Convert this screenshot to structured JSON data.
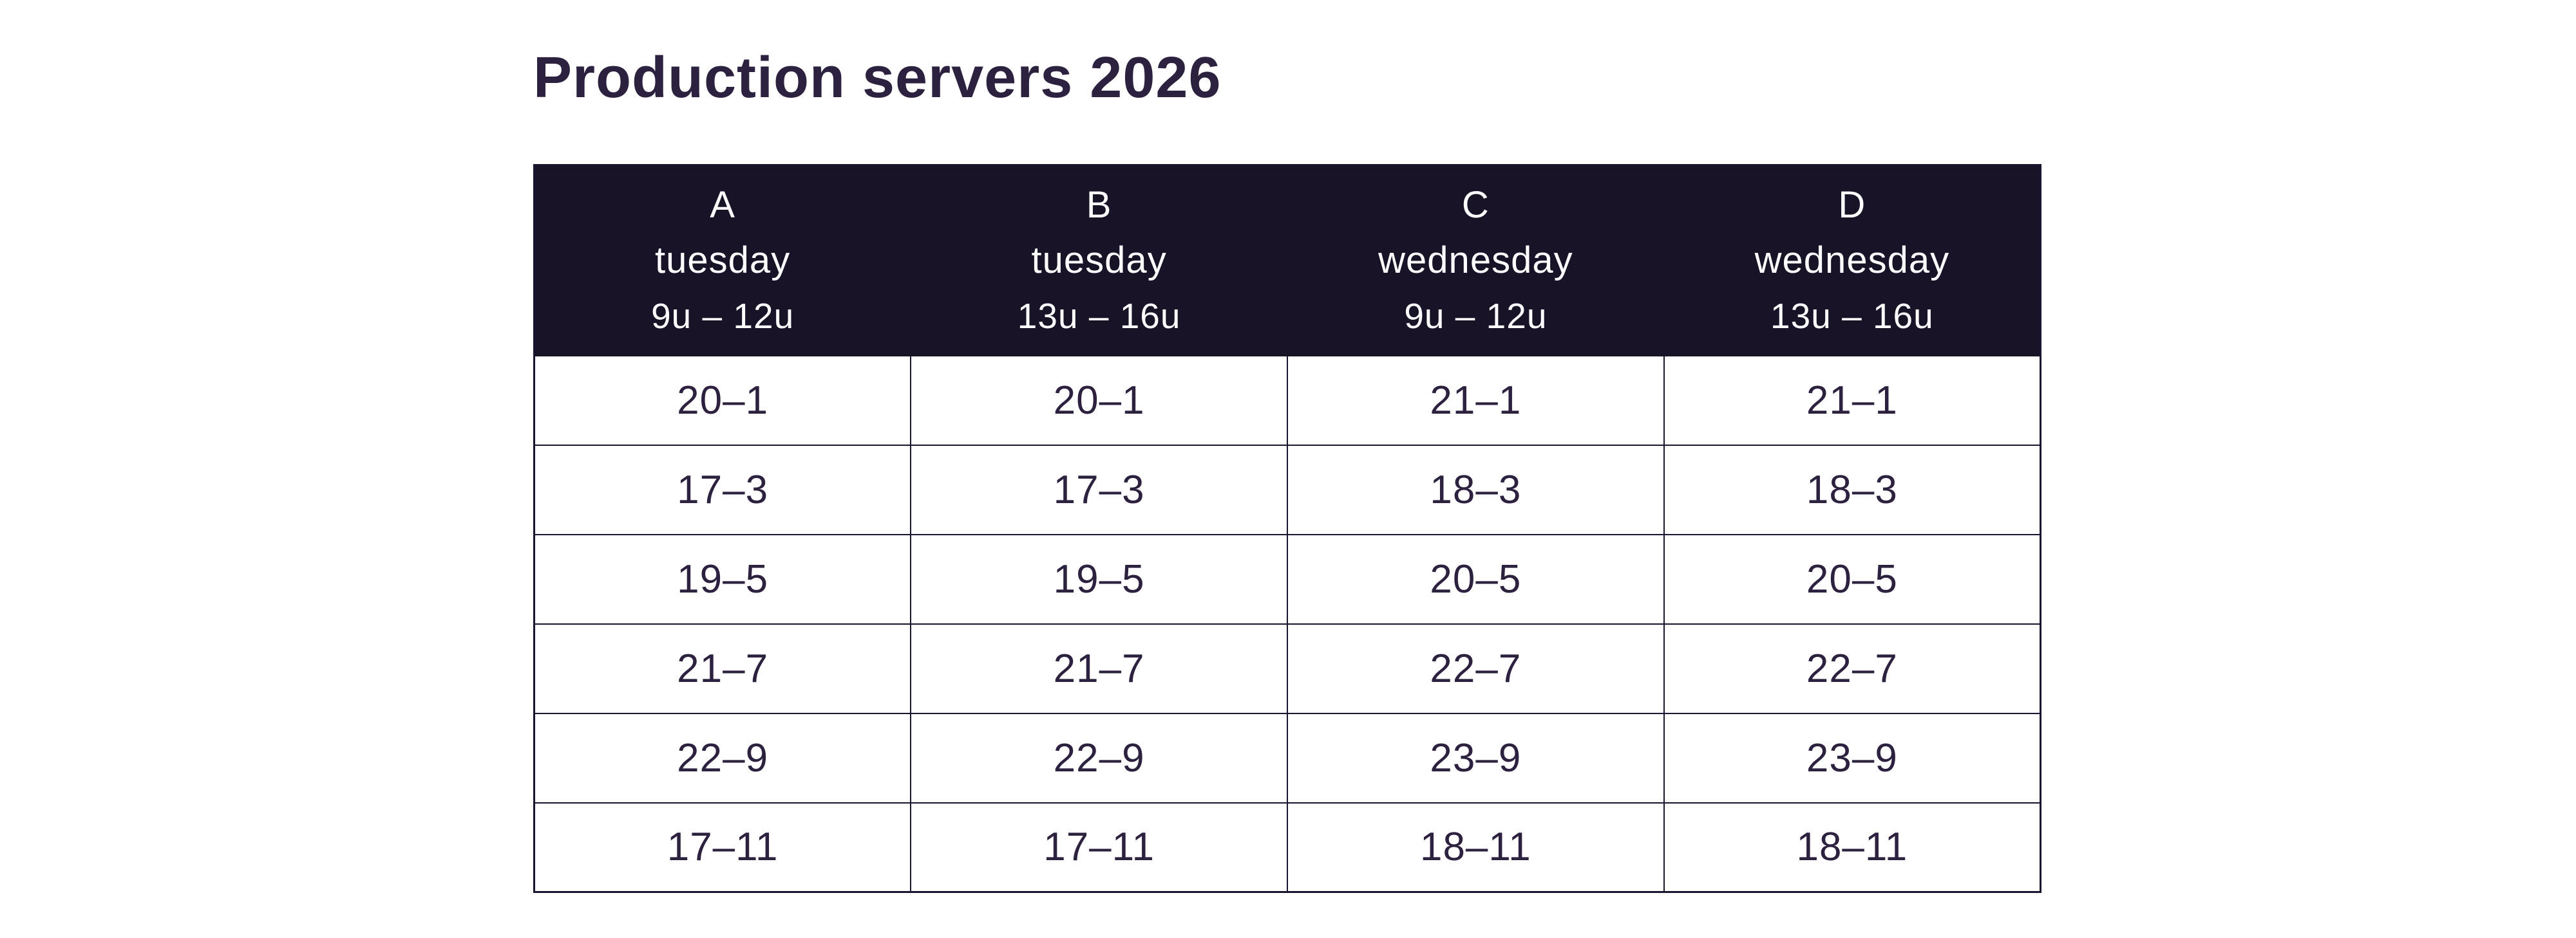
{
  "page": {
    "title": "Production servers 2026"
  },
  "colors": {
    "header_bg": "#191328",
    "text_color": "#2d2140",
    "border_color": "#1b1430",
    "page_bg": "#ffffff"
  },
  "table": {
    "columns": [
      {
        "group": "A",
        "day": "tuesday",
        "hours": "9u – 12u"
      },
      {
        "group": "B",
        "day": "tuesday",
        "hours": "13u – 16u"
      },
      {
        "group": "C",
        "day": "wednesday",
        "hours": "9u – 12u"
      },
      {
        "group": "D",
        "day": "wednesday",
        "hours": "13u – 16u"
      }
    ],
    "rows": [
      [
        "20–1",
        "20–1",
        "21–1",
        "21–1"
      ],
      [
        "17–3",
        "17–3",
        "18–3",
        "18–3"
      ],
      [
        "19–5",
        "19–5",
        "20–5",
        "20–5"
      ],
      [
        "21–7",
        "21–7",
        "22–7",
        "22–7"
      ],
      [
        "22–9",
        "22–9",
        "23–9",
        "23–9"
      ],
      [
        "17–11",
        "17–11",
        "18–11",
        "18–11"
      ]
    ]
  }
}
